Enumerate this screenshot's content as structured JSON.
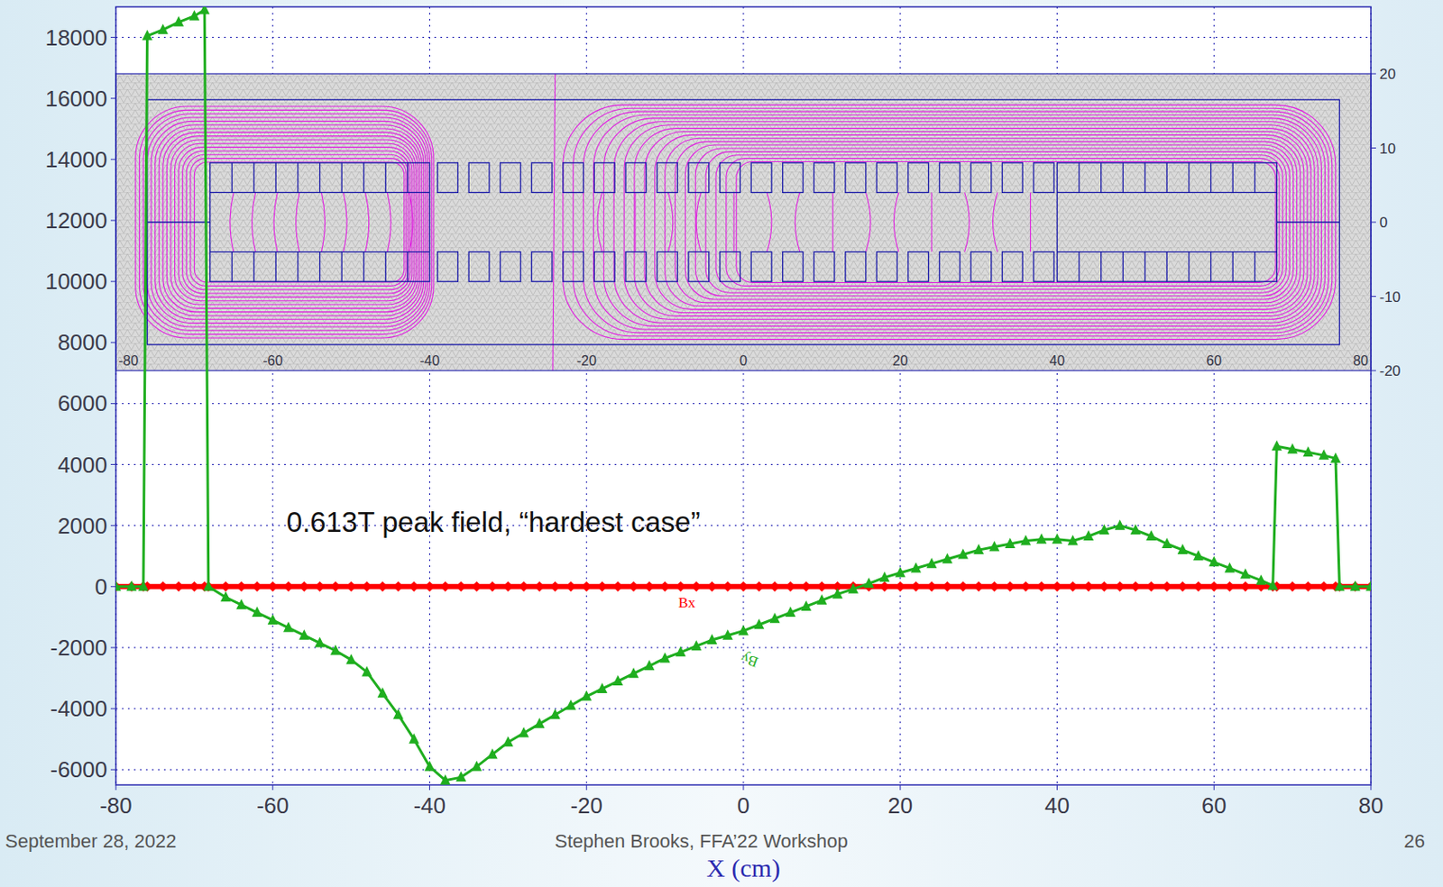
{
  "chart_data": {
    "type": "line",
    "x_label": "X (cm)",
    "annotations": [
      "0.613T peak field, “hardest case”"
    ],
    "x": [
      -80,
      -78,
      -76.5,
      -76,
      -74,
      -72,
      -70,
      -68.7,
      -68.2,
      -66,
      -64,
      -62,
      -60,
      -58,
      -56,
      -54,
      -52,
      -50,
      -48,
      -46,
      -44,
      -42,
      -40,
      -38,
      -36,
      -34,
      -32,
      -30,
      -28,
      -26,
      -24,
      -22,
      -20,
      -18,
      -16,
      -14,
      -12,
      -10,
      -8,
      -6,
      -4,
      -2,
      0,
      2,
      4,
      6,
      8,
      10,
      12,
      14,
      16,
      18,
      20,
      22,
      24,
      26,
      28,
      30,
      32,
      34,
      36,
      38,
      40,
      42,
      44,
      46,
      48,
      50,
      52,
      54,
      56,
      58,
      60,
      62,
      64,
      66,
      67.5,
      68,
      70,
      72,
      74,
      75.5,
      76,
      78,
      80
    ],
    "series": [
      {
        "name": "Bx",
        "color": "#ff0000",
        "marker": "diamond",
        "values": [
          0,
          0,
          0,
          0,
          0,
          0,
          0,
          0,
          0,
          0,
          0,
          0,
          0,
          0,
          0,
          0,
          0,
          0,
          0,
          0,
          0,
          0,
          0,
          0,
          0,
          0,
          0,
          0,
          0,
          0,
          0,
          0,
          0,
          0,
          0,
          0,
          0,
          0,
          0,
          0,
          0,
          0,
          0,
          0,
          0,
          0,
          0,
          0,
          0,
          0,
          0,
          0,
          0,
          0,
          0,
          0,
          0,
          0,
          0,
          0,
          0,
          0,
          0,
          0,
          0,
          0,
          0,
          0,
          0,
          0,
          0,
          0,
          0,
          0,
          0,
          0,
          0,
          0,
          0,
          0,
          0,
          0,
          0,
          0,
          0
        ]
      },
      {
        "name": "By",
        "color": "#1fae1f",
        "marker": "triangle",
        "values": [
          0,
          0,
          0,
          18050,
          18250,
          18500,
          18700,
          18900,
          0,
          -350,
          -600,
          -850,
          -1100,
          -1350,
          -1600,
          -1850,
          -2100,
          -2400,
          -2800,
          -3500,
          -4200,
          -5000,
          -5900,
          -6350,
          -6250,
          -5900,
          -5500,
          -5100,
          -4800,
          -4500,
          -4200,
          -3900,
          -3600,
          -3350,
          -3100,
          -2850,
          -2600,
          -2350,
          -2150,
          -1950,
          -1750,
          -1600,
          -1450,
          -1250,
          -1050,
          -850,
          -650,
          -450,
          -250,
          -80,
          100,
          300,
          450,
          600,
          750,
          900,
          1050,
          1200,
          1300,
          1400,
          1500,
          1550,
          1550,
          1500,
          1650,
          1850,
          2000,
          1850,
          1650,
          1400,
          1200,
          1000,
          800,
          600,
          400,
          200,
          30,
          4600,
          4500,
          4400,
          4300,
          4200,
          0,
          0,
          0
        ]
      }
    ],
    "xlim": [
      -80,
      80
    ],
    "ylim": [
      -6500,
      19000
    ],
    "xticks": [
      -80,
      -60,
      -40,
      -20,
      0,
      20,
      40,
      60,
      80
    ],
    "yticks": [
      -6000,
      -4000,
      -2000,
      0,
      2000,
      4000,
      6000,
      8000,
      10000,
      12000,
      14000,
      16000,
      18000
    ],
    "grid": true
  },
  "inset": {
    "xlim": [
      -80,
      80
    ],
    "ylim": [
      -20,
      20
    ],
    "xticks": [
      -80,
      -60,
      -40,
      -20,
      0,
      20,
      40,
      60,
      80
    ],
    "yticks": [
      -20,
      -10,
      0,
      10,
      20
    ]
  },
  "footer": {
    "date": "September 28, 2022",
    "author": "Stephen Brooks, FFA’22 Workshop",
    "page": 26
  }
}
